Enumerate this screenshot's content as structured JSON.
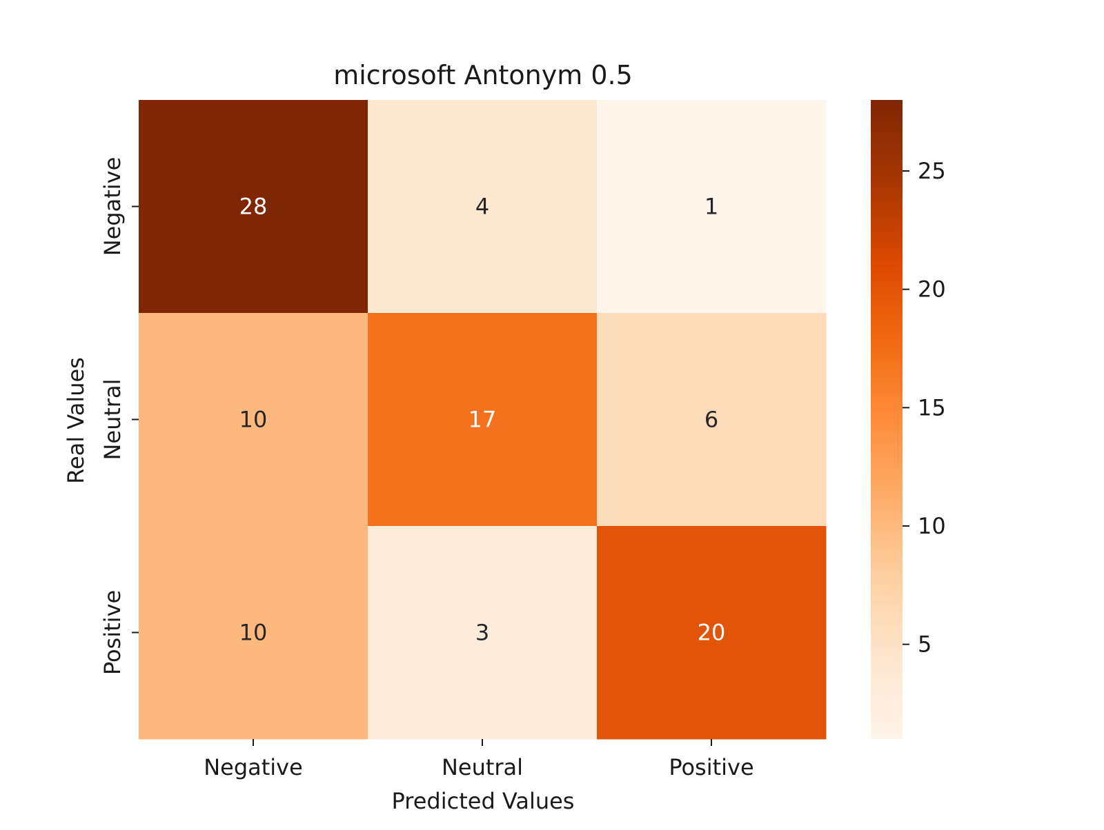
{
  "chart_data": {
    "type": "heatmap",
    "title": "microsoft Antonym 0.5",
    "xlabel": "Predicted Values",
    "ylabel": "Real Values",
    "x_categories": [
      "Negative",
      "Neutral",
      "Positive"
    ],
    "y_categories": [
      "Negative",
      "Neutral",
      "Positive"
    ],
    "values": [
      [
        28,
        4,
        1
      ],
      [
        10,
        17,
        6
      ],
      [
        10,
        3,
        20
      ]
    ],
    "colorbar": {
      "min": 1,
      "max": 28,
      "ticks": [
        5,
        10,
        15,
        20,
        25
      ],
      "colormap": "Oranges"
    }
  }
}
